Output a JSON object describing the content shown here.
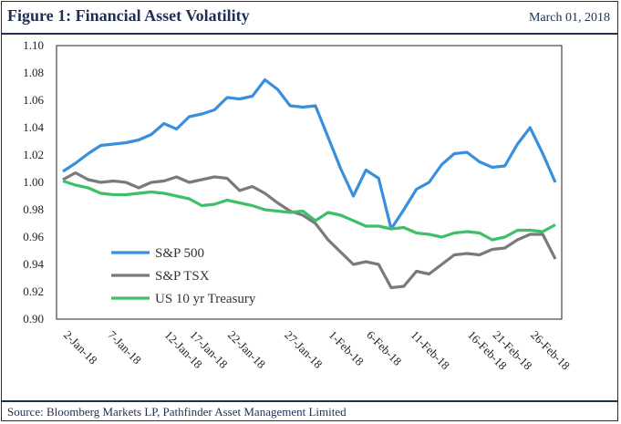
{
  "header": {
    "title": "Figure 1:  Financial Asset Volatility",
    "date": "March 01, 2018"
  },
  "footer": {
    "source": "Source: Bloomberg Markets LP, Pathfinder Asset Management Limited"
  },
  "chart_data": {
    "type": "line",
    "title": "",
    "xlabel": "",
    "ylabel": "",
    "ylim": [
      0.9,
      1.1
    ],
    "yticks": [
      "0.90",
      "0.92",
      "0.94",
      "0.96",
      "0.98",
      "1.00",
      "1.02",
      "1.04",
      "1.06",
      "1.08",
      "1.10"
    ],
    "xticks": [
      "2-Jan-18",
      "7-Jan-18",
      "12-Jan-18",
      "17-Jan-18",
      "22-Jan-18",
      "27-Jan-18",
      "1-Feb-18",
      "6-Feb-18",
      "11-Feb-18",
      "16-Feb-18",
      "21-Feb-18",
      "26-Feb-18"
    ],
    "grid": false,
    "legend_position": "bottom-left inside plot",
    "x": [
      "2-Jan-18",
      "3-Jan-18",
      "4-Jan-18",
      "5-Jan-18",
      "8-Jan-18",
      "9-Jan-18",
      "10-Jan-18",
      "11-Jan-18",
      "12-Jan-18",
      "16-Jan-18",
      "17-Jan-18",
      "18-Jan-18",
      "19-Jan-18",
      "22-Jan-18",
      "23-Jan-18",
      "24-Jan-18",
      "25-Jan-18",
      "26-Jan-18",
      "29-Jan-18",
      "30-Jan-18",
      "31-Jan-18",
      "1-Feb-18",
      "2-Feb-18",
      "5-Feb-18",
      "6-Feb-18",
      "7-Feb-18",
      "8-Feb-18",
      "9-Feb-18",
      "12-Feb-18",
      "13-Feb-18",
      "14-Feb-18",
      "15-Feb-18",
      "16-Feb-18",
      "20-Feb-18",
      "21-Feb-18",
      "22-Feb-18",
      "23-Feb-18",
      "26-Feb-18",
      "27-Feb-18",
      "28-Feb-18"
    ],
    "series": [
      {
        "name": "S&P 500",
        "color": "#3a8fdc",
        "values": [
          1.008,
          1.014,
          1.021,
          1.027,
          1.028,
          1.029,
          1.031,
          1.035,
          1.043,
          1.039,
          1.048,
          1.05,
          1.053,
          1.062,
          1.061,
          1.063,
          1.075,
          1.068,
          1.056,
          1.055,
          1.056,
          1.033,
          1.01,
          0.99,
          1.009,
          1.003,
          0.966,
          0.98,
          0.995,
          1.0,
          1.013,
          1.021,
          1.022,
          1.015,
          1.011,
          1.012,
          1.028,
          1.04,
          1.021,
          1.0
        ]
      },
      {
        "name": "S&P TSX",
        "color": "#7a7a7a",
        "values": [
          1.002,
          1.007,
          1.002,
          1.0,
          1.001,
          1.0,
          0.996,
          1.0,
          1.001,
          1.004,
          1.0,
          1.002,
          1.004,
          1.003,
          0.994,
          0.997,
          0.992,
          0.985,
          0.979,
          0.976,
          0.97,
          0.958,
          0.949,
          0.94,
          0.942,
          0.94,
          0.923,
          0.924,
          0.935,
          0.933,
          0.94,
          0.947,
          0.948,
          0.947,
          0.951,
          0.952,
          0.958,
          0.962,
          0.962,
          0.944
        ]
      },
      {
        "name": "US 10 yr Treasury",
        "color": "#3fbf6a",
        "values": [
          1.001,
          0.998,
          0.996,
          0.992,
          0.991,
          0.991,
          0.992,
          0.993,
          0.992,
          0.99,
          0.988,
          0.983,
          0.984,
          0.987,
          0.985,
          0.983,
          0.98,
          0.979,
          0.978,
          0.979,
          0.972,
          0.978,
          0.976,
          0.972,
          0.968,
          0.968,
          0.966,
          0.967,
          0.963,
          0.962,
          0.96,
          0.963,
          0.964,
          0.963,
          0.958,
          0.96,
          0.965,
          0.965,
          0.964,
          0.969
        ]
      }
    ]
  }
}
